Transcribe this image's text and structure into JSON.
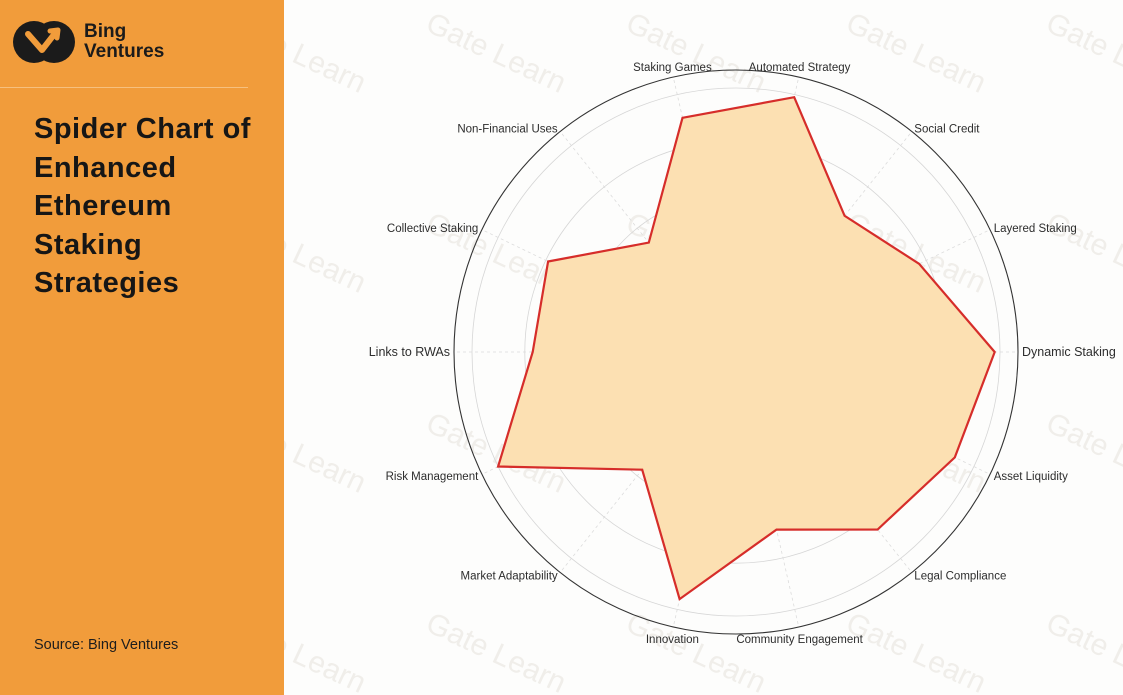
{
  "brand": {
    "name_line1": "Bing",
    "name_line2": "Ventures",
    "logo_color": "#1b1b1b"
  },
  "sidebar": {
    "title": "Spider Chart of Enhanced Ethereum Staking Strategies",
    "source": "Source: Bing Ventures",
    "background": "#f19c3b"
  },
  "watermark": "Gate Learn",
  "chart_data": {
    "type": "radar",
    "categories": [
      "Dynamic Staking",
      "Layered Staking",
      "Social Credit",
      "Automated Strategy",
      "Staking Games",
      "Non-Financial Uses",
      "Collective Staking",
      "Links to RWAs",
      "Risk Management",
      "Market Adaptability",
      "Innovation",
      "Community Engagement",
      "Legal Compliance",
      "Asset Liquidity"
    ],
    "series": [
      {
        "values": [
          0.98,
          0.77,
          0.66,
          0.99,
          0.91,
          0.53,
          0.79,
          0.77,
          1.0,
          0.57,
          0.96,
          0.69,
          0.86,
          0.92
        ]
      }
    ],
    "rlim": [
      0,
      1
    ],
    "rings": 5,
    "grid": true,
    "fill_color": "#fce0b2",
    "line_color": "#d62d2a"
  }
}
